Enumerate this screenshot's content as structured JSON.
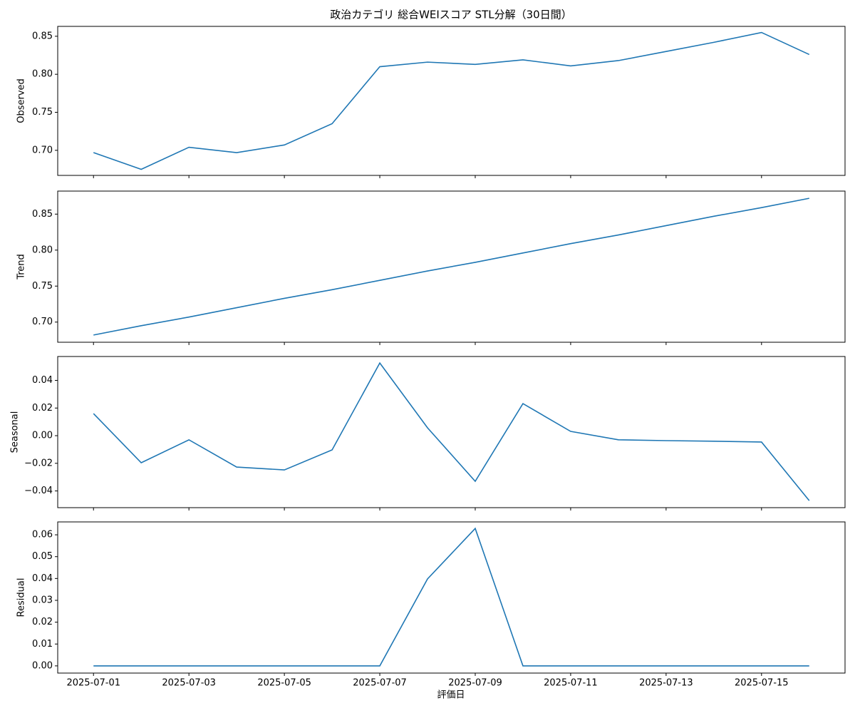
{
  "title": "政治カテゴリ 総合WEIスコア STL分解（30日間）",
  "x_label": "評価日",
  "chart_data": [
    {
      "type": "line",
      "y_label": "Observed",
      "color": "#1f77b4",
      "x": [
        "2025-07-01",
        "2025-07-02",
        "2025-07-03",
        "2025-07-04",
        "2025-07-05",
        "2025-07-06",
        "2025-07-07",
        "2025-07-08",
        "2025-07-09",
        "2025-07-10",
        "2025-07-11",
        "2025-07-12",
        "2025-07-13",
        "2025-07-14",
        "2025-07-15",
        "2025-07-16"
      ],
      "values": [
        0.697,
        0.675,
        0.704,
        0.697,
        0.707,
        0.735,
        0.81,
        0.816,
        0.813,
        0.819,
        0.811,
        0.818,
        0.83,
        0.842,
        0.855,
        0.826
      ],
      "xlim": [
        "2025-06-30T06:00",
        "2025-07-16T18:00"
      ],
      "xticks": [
        "2025-07-01",
        "2025-07-03",
        "2025-07-05",
        "2025-07-07",
        "2025-07-09",
        "2025-07-11",
        "2025-07-13",
        "2025-07-15"
      ],
      "ylim": [
        0.667,
        0.863
      ],
      "yticks": [
        {
          "value": 0.7,
          "label": "0.70"
        },
        0.75,
        {
          "value": 0.8,
          "label": "0.80"
        },
        0.85
      ]
    },
    {
      "type": "line",
      "y_label": "Trend",
      "color": "#1f77b4",
      "x": [
        "2025-07-01",
        "2025-07-02",
        "2025-07-03",
        "2025-07-04",
        "2025-07-05",
        "2025-07-06",
        "2025-07-07",
        "2025-07-08",
        "2025-07-09",
        "2025-07-10",
        "2025-07-11",
        "2025-07-12",
        "2025-07-13",
        "2025-07-14",
        "2025-07-15",
        "2025-07-16"
      ],
      "values": [
        0.682,
        0.695,
        0.707,
        0.72,
        0.733,
        0.745,
        0.758,
        0.771,
        0.783,
        0.796,
        0.809,
        0.821,
        0.834,
        0.847,
        0.859,
        0.872
      ],
      "xlim": [
        "2025-06-30T06:00",
        "2025-07-16T18:00"
      ],
      "xticks": [
        "2025-07-01",
        "2025-07-03",
        "2025-07-05",
        "2025-07-07",
        "2025-07-09",
        "2025-07-11",
        "2025-07-13",
        "2025-07-15"
      ],
      "ylim": [
        0.672,
        0.882
      ],
      "yticks": [
        {
          "value": 0.7,
          "label": "0.70"
        },
        0.75,
        {
          "value": 0.8,
          "label": "0.80"
        },
        0.85
      ]
    },
    {
      "type": "line",
      "y_label": "Seasonal",
      "color": "#1f77b4",
      "x": [
        "2025-07-01",
        "2025-07-02",
        "2025-07-03",
        "2025-07-04",
        "2025-07-05",
        "2025-07-06",
        "2025-07-07",
        "2025-07-08",
        "2025-07-09",
        "2025-07-10",
        "2025-07-11",
        "2025-07-12",
        "2025-07-13",
        "2025-07-14",
        "2025-07-15",
        "2025-07-16"
      ],
      "values": [
        0.016,
        -0.0196,
        -0.003,
        -0.0227,
        -0.0248,
        -0.0103,
        0.0526,
        0.0057,
        -0.033,
        0.0232,
        0.0031,
        -0.003,
        -0.0036,
        -0.004,
        -0.0046,
        -0.047
      ],
      "xlim": [
        "2025-06-30T06:00",
        "2025-07-16T18:00"
      ],
      "xticks": [
        "2025-07-01",
        "2025-07-03",
        "2025-07-05",
        "2025-07-07",
        "2025-07-09",
        "2025-07-11",
        "2025-07-13",
        "2025-07-15"
      ],
      "ylim": [
        -0.0521,
        0.0573
      ],
      "yticks": [
        {
          "value": -0.04,
          "label": "−0.04"
        },
        {
          "value": -0.02,
          "label": "−0.02"
        },
        {
          "value": 0,
          "label": "0.00"
        },
        0.02,
        0.04
      ]
    },
    {
      "type": "line",
      "y_label": "Residual",
      "color": "#1f77b4",
      "x": [
        "2025-07-01",
        "2025-07-02",
        "2025-07-03",
        "2025-07-04",
        "2025-07-05",
        "2025-07-06",
        "2025-07-07",
        "2025-07-08",
        "2025-07-09",
        "2025-07-10",
        "2025-07-11",
        "2025-07-12",
        "2025-07-13",
        "2025-07-14",
        "2025-07-15",
        "2025-07-16"
      ],
      "values": [
        0,
        0,
        0,
        0,
        0,
        0,
        0,
        0.0398,
        0.0629,
        0,
        0,
        0,
        0,
        0,
        0,
        0
      ],
      "xlim": [
        "2025-06-30T06:00",
        "2025-07-16T18:00"
      ],
      "xticks": [
        "2025-07-01",
        "2025-07-03",
        "2025-07-05",
        "2025-07-07",
        "2025-07-09",
        "2025-07-11",
        "2025-07-13",
        "2025-07-15"
      ],
      "ylim": [
        -0.0033,
        0.0659
      ],
      "yticks": [
        {
          "value": 0,
          "label": "0.00"
        },
        0.01,
        0.02,
        0.03,
        0.04,
        0.05,
        0.06
      ]
    }
  ]
}
